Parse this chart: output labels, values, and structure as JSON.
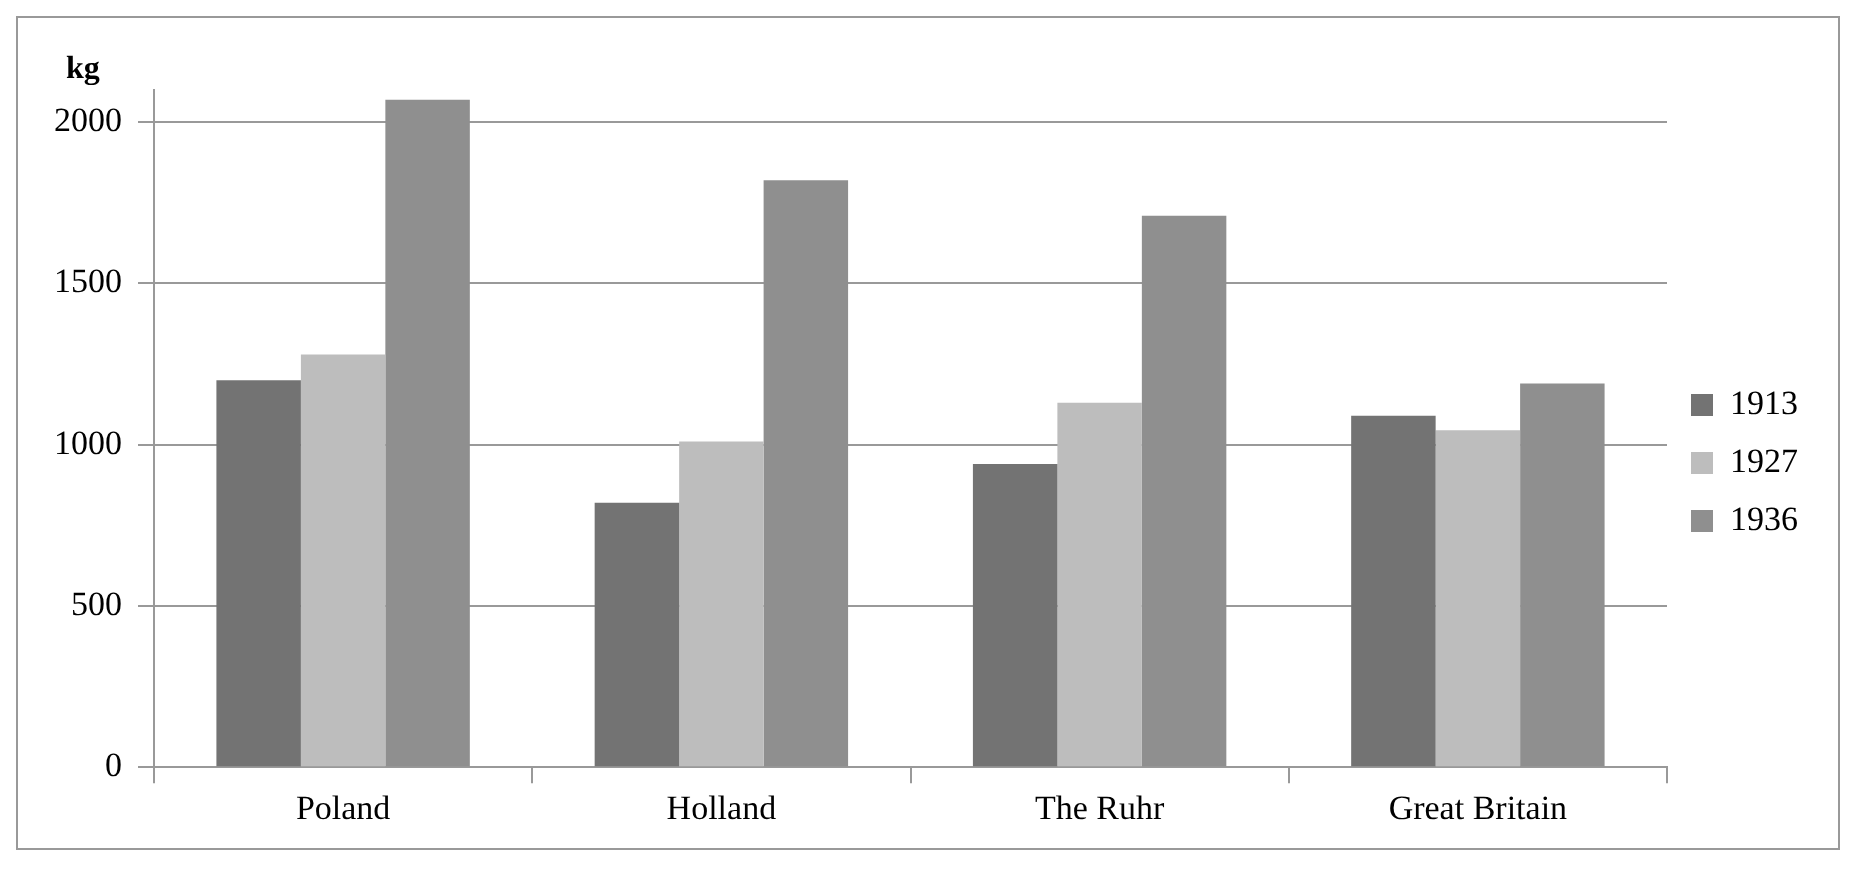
{
  "chart_data": {
    "type": "bar",
    "ylabel": "kg",
    "categories": [
      "Poland",
      "Holland",
      "The Ruhr",
      "Great Britain"
    ],
    "series": [
      {
        "name": "1913",
        "color": "#737373",
        "values": [
          1200,
          820,
          940,
          1090
        ]
      },
      {
        "name": "1927",
        "color": "#bdbdbd",
        "values": [
          1280,
          1010,
          1130,
          1045
        ]
      },
      {
        "name": "1936",
        "color": "#8f8f8f",
        "values": [
          2070,
          1820,
          1710,
          1190
        ]
      }
    ],
    "ylim": [
      0,
      2100
    ],
    "yticks": [
      0,
      500,
      1000,
      1500,
      2000
    ],
    "grid": "y",
    "legend": "right"
  }
}
